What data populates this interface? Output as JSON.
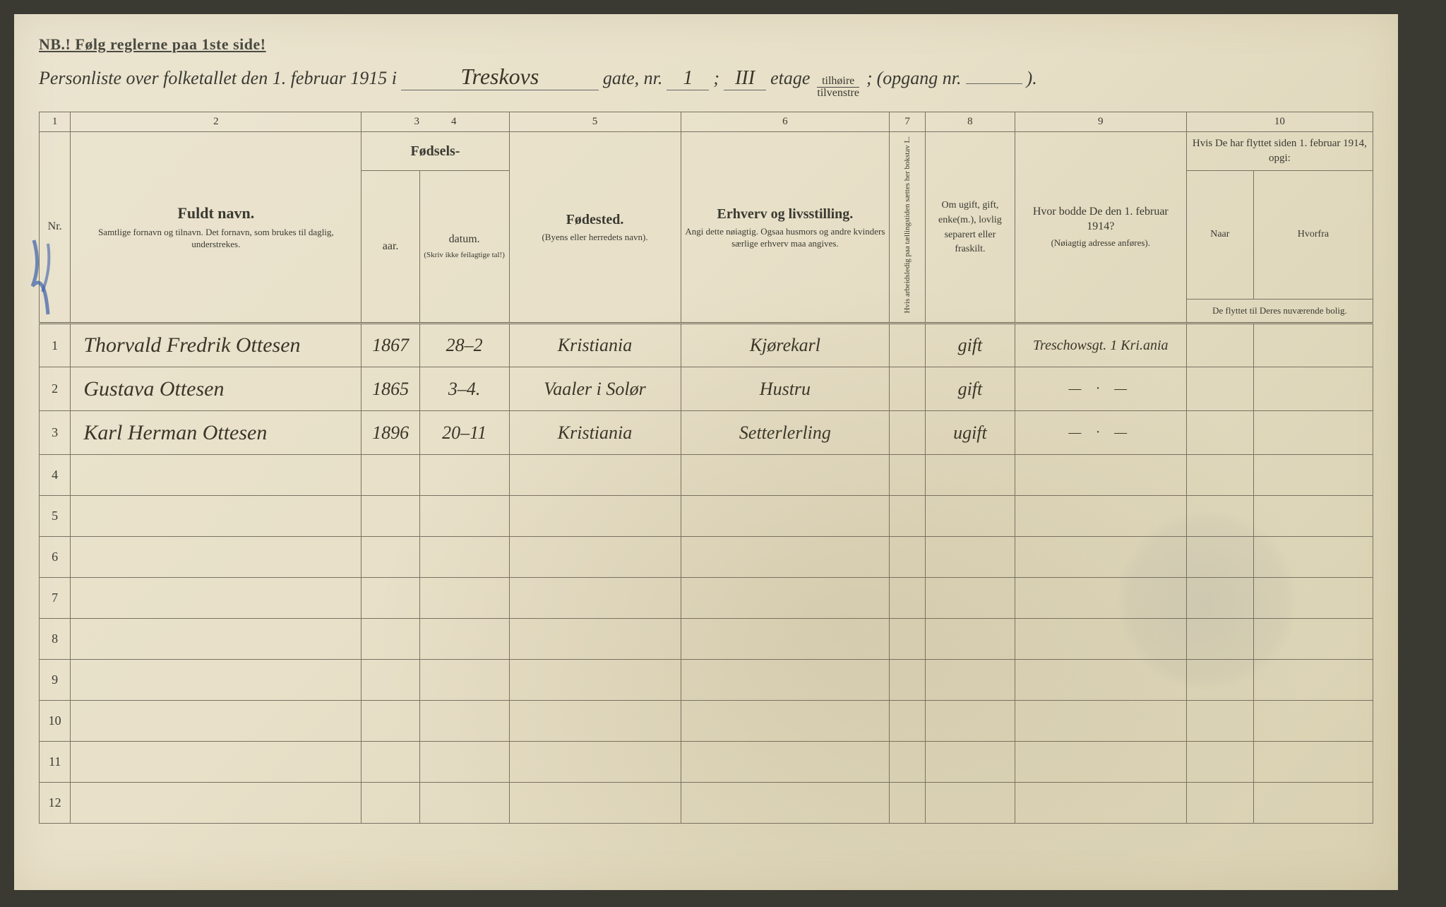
{
  "header": {
    "nb_text": "NB.! Følg reglerne paa 1ste side!",
    "title_prefix": "Personliste over folketallet den 1. februar 1915 i",
    "street_name": "Treskovs",
    "gate_label": "gate, nr.",
    "gate_nr": "1",
    "semicolon1": ";",
    "etage_nr": "III",
    "etage_label": "etage",
    "tilhoire": "tilhøire",
    "tilvenstre": "tilvenstre",
    "opgang_label": "(opgang nr.",
    "opgang_nr": "",
    "closing": ")."
  },
  "columns": {
    "numbers": [
      "1",
      "2",
      "3",
      "4",
      "5",
      "6",
      "7",
      "8",
      "9",
      "10"
    ],
    "nr_label": "Nr.",
    "name_main": "Fuldt navn.",
    "name_sub": "Samtlige fornavn og tilnavn. Det fornavn, som brukes til daglig, understrekes.",
    "birth_main": "Fødsels-",
    "birth_year": "aar.",
    "birth_date": "datum.",
    "birth_sub": "(Skriv ikke feilagtige tal!)",
    "place_main": "Fødested.",
    "place_sub": "(Byens eller herredets navn).",
    "occ_main": "Erhverv og livsstilling.",
    "occ_sub": "Angi dette nøiagtig. Ogsaa husmors og andre kvinders særlige erhverv maa angives.",
    "col7_text": "Hvis arbeidsledig paa tællingstiden sættes her bokstav L.",
    "col8_text": "Om ugift, gift, enke(m.), lovlig separert eller fraskilt.",
    "col9_main": "Hvor bodde De den 1. februar 1914?",
    "col9_sub": "(Nøiagtig adresse anføres).",
    "col10_main": "Hvis De har flyttet siden 1. februar 1914, opgi:",
    "col10_naar": "Naar",
    "col10_hvorfra": "Hvorfra",
    "col10_sub": "De flyttet til Deres nuværende bolig."
  },
  "rows": [
    {
      "nr": "1",
      "name": "Thorvald Fredrik Ottesen",
      "year": "1867",
      "date": "28–2",
      "place": "Kristiania",
      "occ": "Kjørekarl",
      "c7": "",
      "c8": "gift",
      "c9": "Treschowsgt. 1 Kri.ania",
      "c10a": "",
      "c10b": ""
    },
    {
      "nr": "2",
      "name": "Gustava Ottesen",
      "year": "1865",
      "date": "3–4.",
      "place": "Vaaler i Solør",
      "occ": "Hustru",
      "c7": "",
      "c8": "gift",
      "c9": "— · —",
      "c10a": "",
      "c10b": ""
    },
    {
      "nr": "3",
      "name": "Karl Herman Ottesen",
      "year": "1896",
      "date": "20–11",
      "place": "Kristiania",
      "occ": "Setterlerling",
      "c7": "",
      "c8": "ugift",
      "c9": "— · —",
      "c10a": "",
      "c10b": ""
    }
  ],
  "empty_rows": [
    "4",
    "5",
    "6",
    "7",
    "8",
    "9",
    "10",
    "11",
    "12"
  ],
  "style": {
    "page_bg_start": "#ebe4d0",
    "page_bg_end": "#d8d0b0",
    "ink_color": "#3a3528",
    "rule_color": "#7a7262",
    "blue_pencil": "#3a5fa8"
  }
}
